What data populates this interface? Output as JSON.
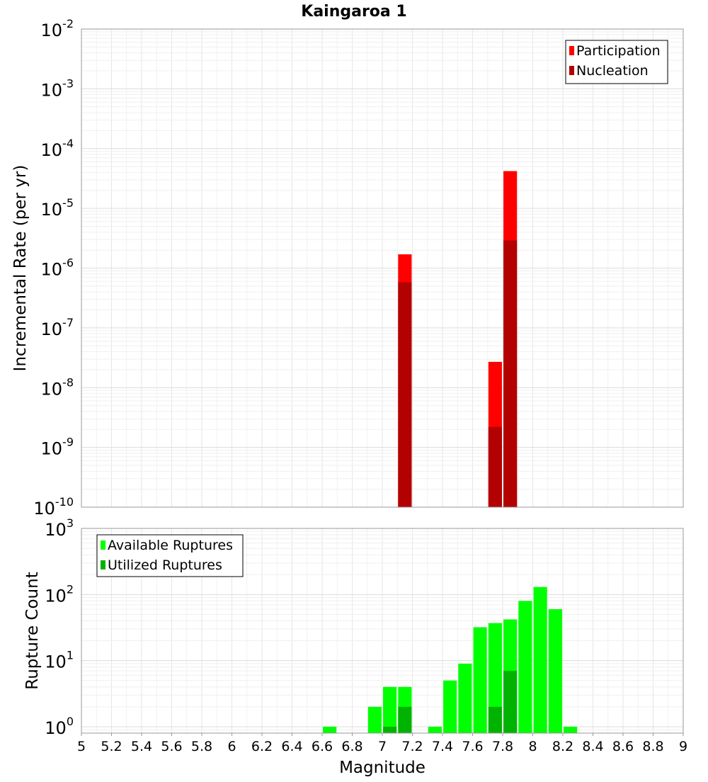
{
  "chart_data": [
    {
      "type": "bar",
      "panel": "top",
      "title": "Kaingaroa 1",
      "xlabel": "",
      "ylabel": "Incremental Rate (per yr)",
      "xlim": [
        5,
        9
      ],
      "ylim": [
        1e-10,
        0.01
      ],
      "yscale": "log",
      "grid": true,
      "legend_position": "top-right",
      "bar_width": 0.09,
      "series": [
        {
          "name": "Participation",
          "color": "#ff0000",
          "points": [
            {
              "x": 7.15,
              "y": 1.7e-06
            },
            {
              "x": 7.75,
              "y": 2.7e-08
            },
            {
              "x": 7.85,
              "y": 4.2e-05
            }
          ]
        },
        {
          "name": "Nucleation",
          "color": "#b30000",
          "points": [
            {
              "x": 7.15,
              "y": 5.8e-07
            },
            {
              "x": 7.75,
              "y": 2.2e-09
            },
            {
              "x": 7.85,
              "y": 2.9e-06
            }
          ]
        }
      ]
    },
    {
      "type": "bar",
      "panel": "bottom",
      "xlabel": "Magnitude",
      "ylabel": "Rupture Count",
      "xlim": [
        5,
        9
      ],
      "ylim": [
        0.8,
        1000
      ],
      "yscale": "log",
      "grid": true,
      "legend_position": "top-left",
      "bar_width": 0.09,
      "series": [
        {
          "name": "Available Ruptures",
          "color": "#00ff00",
          "points": [
            {
              "x": 6.65,
              "y": 1
            },
            {
              "x": 6.95,
              "y": 2
            },
            {
              "x": 7.05,
              "y": 4
            },
            {
              "x": 7.15,
              "y": 4
            },
            {
              "x": 7.35,
              "y": 1
            },
            {
              "x": 7.45,
              "y": 5
            },
            {
              "x": 7.55,
              "y": 9
            },
            {
              "x": 7.65,
              "y": 32
            },
            {
              "x": 7.75,
              "y": 37
            },
            {
              "x": 7.85,
              "y": 42
            },
            {
              "x": 7.95,
              "y": 80
            },
            {
              "x": 8.05,
              "y": 130
            },
            {
              "x": 8.15,
              "y": 60
            },
            {
              "x": 8.25,
              "y": 1
            }
          ]
        },
        {
          "name": "Utilized Ruptures",
          "color": "#00b300",
          "points": [
            {
              "x": 7.05,
              "y": 1
            },
            {
              "x": 7.15,
              "y": 2
            },
            {
              "x": 7.75,
              "y": 2
            },
            {
              "x": 7.85,
              "y": 7
            }
          ]
        }
      ]
    }
  ],
  "axis": {
    "x_ticks": [
      "5",
      "5.2",
      "5.4",
      "5.6",
      "5.8",
      "6",
      "6.2",
      "6.4",
      "6.6",
      "6.8",
      "7",
      "7.2",
      "7.4",
      "7.6",
      "7.8",
      "8",
      "8.2",
      "8.4",
      "8.6",
      "8.8",
      "9"
    ],
    "top_y_exponents": [
      "-2",
      "-3",
      "-4",
      "-5",
      "-6",
      "-7",
      "-8",
      "-9",
      "-10"
    ],
    "bottom_y_exponents": [
      "3",
      "2",
      "1",
      "0"
    ],
    "y_tick_base": "10"
  }
}
